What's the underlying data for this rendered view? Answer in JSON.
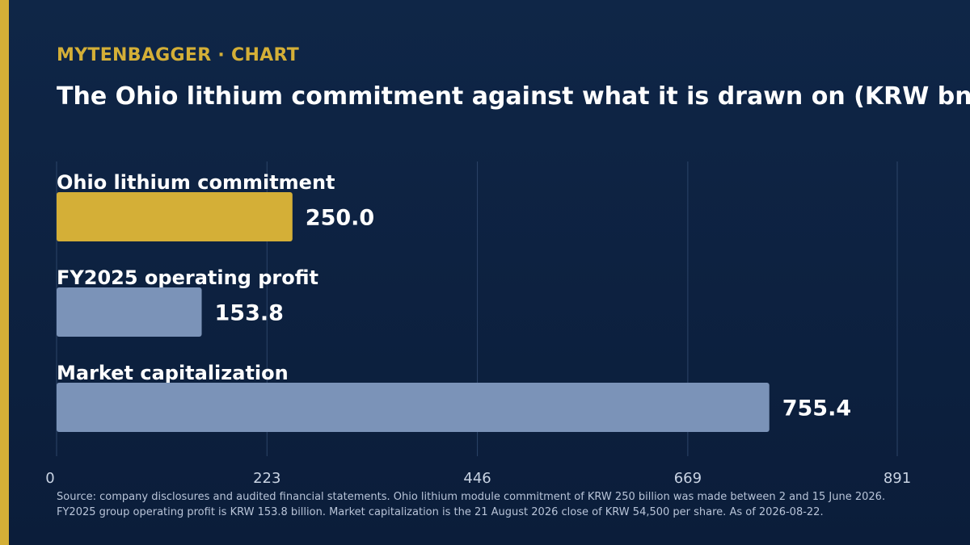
{
  "brand": {
    "kicker": "MYTENBAGGER · CHART"
  },
  "colors": {
    "background": "#0d2143",
    "accent": "#d4af37",
    "secondary_bar": "#7b93b8",
    "grid": "#2c4468",
    "tick_text": "#c9d3e3",
    "footnote_text": "#b8c4d8"
  },
  "chart_data": {
    "type": "bar",
    "orientation": "horizontal",
    "title": "The Ohio lithium commitment against what it is drawn on (KRW bn)",
    "categories": [
      "Ohio lithium commitment",
      "FY2025 operating profit",
      "Market capitalization"
    ],
    "values": [
      250.0,
      153.8,
      755.4
    ],
    "value_labels": [
      "250.0",
      "153.8",
      "755.4"
    ],
    "highlight_index": 0,
    "xlim": [
      0,
      891
    ],
    "xticks": [
      0,
      223,
      446,
      669,
      891
    ],
    "grid": true,
    "xlabel": "",
    "ylabel": ""
  },
  "footnote": "Source: company disclosures and audited financial statements. Ohio lithium module commitment of KRW 250 billion was made between 2 and 15 June 2026. FY2025 group operating profit is KRW 153.8 billion. Market capitalization is the 21 August 2026 close of KRW 54,500 per share. As of 2026-08-22."
}
